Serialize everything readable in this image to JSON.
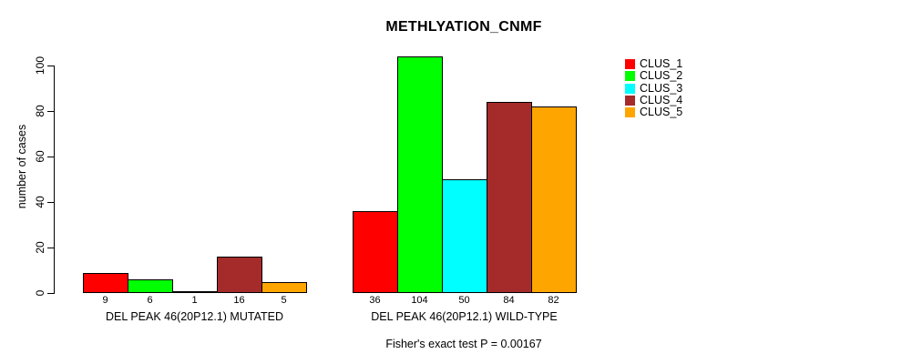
{
  "chart_data": {
    "type": "bar",
    "title": "METHLYATION_CNMF",
    "ylabel": "number of cases",
    "xlabel": "",
    "ylim": [
      0,
      100
    ],
    "yticks": [
      0,
      20,
      40,
      60,
      80,
      100
    ],
    "grid": false,
    "legend_position": "top-right",
    "categories": [
      "DEL PEAK 46(20P12.1) MUTATED",
      "DEL PEAK 46(20P12.1) WILD-TYPE"
    ],
    "series": [
      {
        "name": "CLUS_1",
        "color": "#FF0000",
        "values": [
          9,
          36
        ]
      },
      {
        "name": "CLUS_2",
        "color": "#00FF00",
        "values": [
          6,
          104
        ]
      },
      {
        "name": "CLUS_3",
        "color": "#00FFFF",
        "values": [
          1,
          50
        ]
      },
      {
        "name": "CLUS_4",
        "color": "#A52A2A",
        "values": [
          16,
          84
        ]
      },
      {
        "name": "CLUS_5",
        "color": "#FFA500",
        "values": [
          5,
          82
        ]
      }
    ],
    "bar_value_labels": [
      [
        9,
        6,
        1,
        16,
        5
      ],
      [
        36,
        104,
        50,
        84,
        82
      ]
    ],
    "annotation": "Fisher's exact test P = 0.00167",
    "axis_color": "#000000",
    "background_color": "#FFFFFF"
  }
}
